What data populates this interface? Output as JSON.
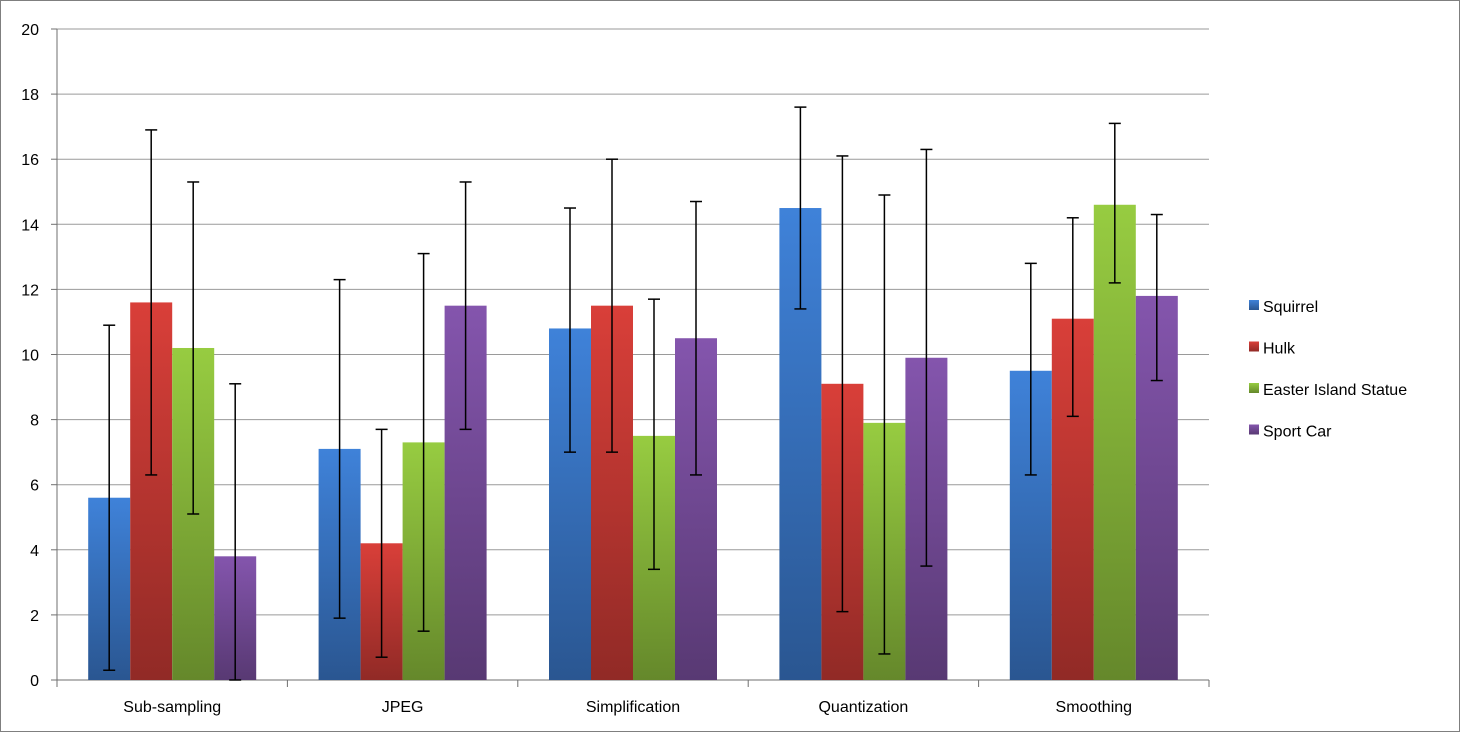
{
  "chart_data": {
    "type": "bar",
    "title": "",
    "xlabel": "",
    "ylabel": "",
    "ylim": [
      0,
      20
    ],
    "yticks": [
      0,
      2,
      4,
      6,
      8,
      10,
      12,
      14,
      16,
      18,
      20
    ],
    "grid": true,
    "legend_position": "right",
    "categories": [
      "Sub-sampling",
      "JPEG",
      "Simplification",
      "Quantization",
      "Smoothing"
    ],
    "series": [
      {
        "name": "Squirrel",
        "color": "#3a78c9",
        "values": [
          5.6,
          7.1,
          10.8,
          14.5,
          9.5
        ],
        "error_low": [
          0.3,
          1.9,
          7.0,
          11.4,
          6.3
        ],
        "error_high": [
          10.9,
          12.3,
          14.5,
          17.6,
          12.8
        ]
      },
      {
        "name": "Hulk",
        "color": "#c93a35",
        "values": [
          11.6,
          4.2,
          11.5,
          9.1,
          11.1
        ],
        "error_low": [
          6.3,
          0.7,
          7.0,
          2.1,
          8.1
        ],
        "error_high": [
          16.9,
          7.7,
          16.0,
          16.1,
          14.2
        ]
      },
      {
        "name": "Easter Island Statue",
        "color": "#8cbd3c",
        "values": [
          10.2,
          7.3,
          7.5,
          7.9,
          14.6
        ],
        "error_low": [
          5.1,
          1.5,
          3.4,
          0.8,
          12.2
        ],
        "error_high": [
          15.3,
          13.1,
          11.7,
          14.9,
          17.1
        ]
      },
      {
        "name": "Sport Car",
        "color": "#7a4fa0",
        "values": [
          3.8,
          11.5,
          10.5,
          9.9,
          11.8
        ],
        "error_low": [
          0.0,
          7.7,
          6.3,
          3.5,
          9.2
        ],
        "error_high": [
          9.1,
          15.3,
          14.7,
          16.3,
          14.3
        ]
      }
    ]
  }
}
